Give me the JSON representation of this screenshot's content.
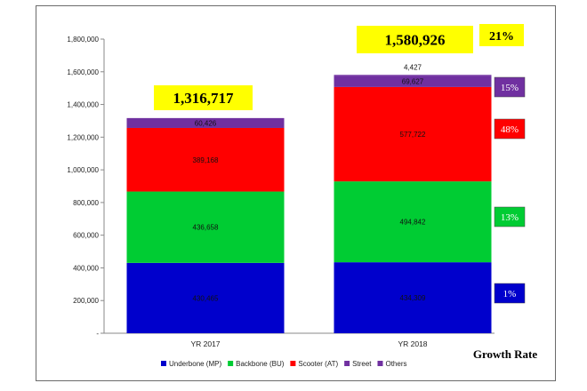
{
  "chart_data": {
    "type": "bar",
    "stacked": true,
    "categories": [
      "YR 2017",
      "YR 2018"
    ],
    "series": [
      {
        "name": "Underbone (MP)",
        "color": "#0000cc",
        "values": [
          430465,
          434309
        ]
      },
      {
        "name": "Backbone (BU)",
        "color": "#00cc33",
        "values": [
          436658,
          494842
        ]
      },
      {
        "name": "Scooter (AT)",
        "color": "#ff0000",
        "values": [
          389168,
          577722
        ]
      },
      {
        "name": "Street",
        "color": "#7030a0",
        "values": [
          60426,
          69627
        ]
      },
      {
        "name": "Others",
        "color": "#7030a0",
        "values": [
          null,
          4427
        ]
      }
    ],
    "segment_labels": [
      [
        "430,465",
        "436,658",
        "389,168",
        "60,426",
        ""
      ],
      [
        "434,309",
        "494,842",
        "577,722",
        "69,627",
        "4,427"
      ]
    ],
    "totals": [
      "1,316,717",
      "1,580,926"
    ],
    "ylim": [
      0,
      1800000
    ],
    "yticks": [
      0,
      200000,
      400000,
      600000,
      800000,
      1000000,
      1200000,
      1400000,
      1600000,
      1800000
    ],
    "ytick_labels": [
      "-",
      "200,000",
      "400,000",
      "600,000",
      "800,000",
      "1,000,000",
      "1,200,000",
      "1,400,000",
      "1,600,000",
      "1,800,000"
    ],
    "legend_position": "bottom",
    "growth_rate": {
      "title": "Growth Rate",
      "overall": "21%",
      "items": [
        {
          "label": "15%",
          "color": "#7030a0",
          "series": "Street"
        },
        {
          "label": "48%",
          "color": "#ff0000",
          "series": "Scooter (AT)"
        },
        {
          "label": "13%",
          "color": "#00cc33",
          "series": "Backbone (BU)"
        },
        {
          "label": "1%",
          "color": "#0000cc",
          "series": "Underbone (MP)"
        }
      ]
    },
    "highlight_color": "#ffff00"
  }
}
